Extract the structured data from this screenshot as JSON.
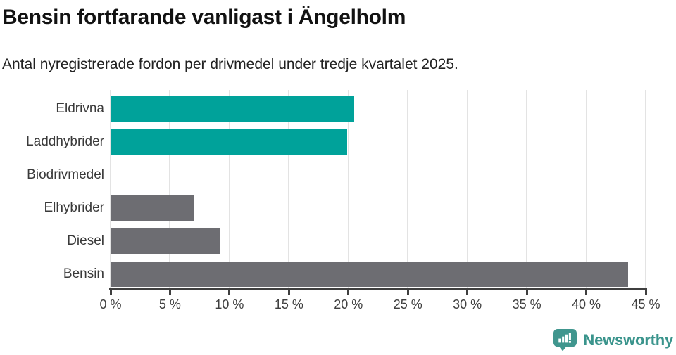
{
  "chart_data": {
    "type": "bar",
    "orientation": "horizontal",
    "title": "Bensin fortfarande vanligast i Ängelholm",
    "subtitle": "Antal nyregistrerade fordon per drivmedel under tredje kvartalet 2025.",
    "categories": [
      "Eldrivna",
      "Laddhybrider",
      "Biodrivmedel",
      "Elhybrider",
      "Diesel",
      "Bensin"
    ],
    "values": [
      20.5,
      19.9,
      0,
      7.0,
      9.2,
      43.5
    ],
    "bar_colors": [
      "#00a29a",
      "#00a29a",
      "#00a29a",
      "#6d6d72",
      "#6d6d72",
      "#6d6d72"
    ],
    "xlim": [
      0,
      45
    ],
    "x_ticks": [
      0,
      5,
      10,
      15,
      20,
      25,
      30,
      35,
      40,
      45
    ],
    "x_tick_suffix": " %",
    "grid": true,
    "legend": "none"
  },
  "colors": {
    "highlight": "#00a29a",
    "muted": "#6d6d72",
    "gridline": "#e3e3e3",
    "axis": "#3f3f3f",
    "brand": "#3a948c"
  },
  "footer": {
    "brand_name": "Newsworthy"
  }
}
